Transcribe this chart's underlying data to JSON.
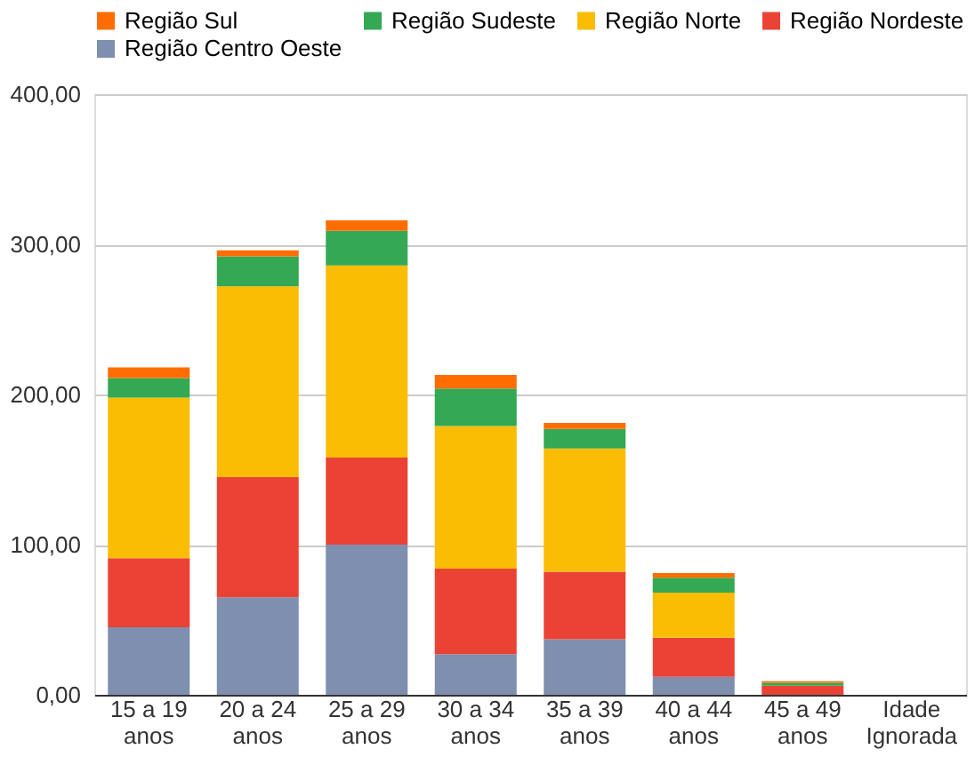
{
  "chart_data": {
    "type": "bar",
    "stacked": true,
    "categories": [
      "15 a 19 anos",
      "20 a 24 anos",
      "25 a 29 anos",
      "30 a 34 anos",
      "35 a 39 anos",
      "40 a 44 anos",
      "45 a 49 anos",
      "Idade Ignorada"
    ],
    "series": [
      {
        "name": "Região Centro Oeste",
        "color": "#7f8fb0",
        "values": [
          45,
          65,
          100,
          27,
          37,
          12,
          0,
          0
        ]
      },
      {
        "name": "Região Nordeste",
        "color": "#ea4335",
        "values": [
          46,
          80,
          58,
          57,
          45,
          26,
          6,
          0
        ]
      },
      {
        "name": "Região Norte",
        "color": "#fbbc04",
        "values": [
          107,
          127,
          128,
          95,
          82,
          30,
          0,
          0
        ]
      },
      {
        "name": "Região Sudeste",
        "color": "#34a853",
        "values": [
          13,
          20,
          23,
          25,
          13,
          10,
          2,
          0
        ]
      },
      {
        "name": "Região Sul",
        "color": "#ff6d01",
        "values": [
          7,
          4,
          7,
          9,
          4,
          3,
          1,
          0
        ]
      }
    ],
    "ylim": [
      0,
      400
    ],
    "yticks": [
      {
        "value": 0,
        "label": "0,00"
      },
      {
        "value": 100,
        "label": "100,00"
      },
      {
        "value": 200,
        "label": "200,00"
      },
      {
        "value": 300,
        "label": "300,00"
      },
      {
        "value": 400,
        "label": "400,00"
      }
    ],
    "grid": "y",
    "legend": "top"
  }
}
